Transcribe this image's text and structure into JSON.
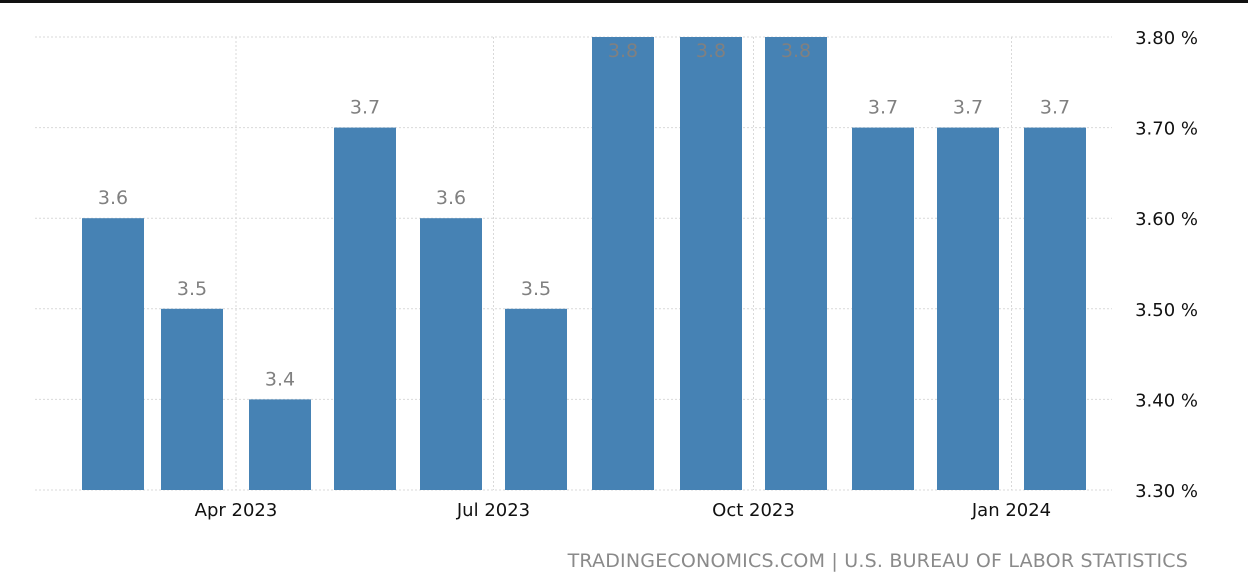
{
  "source": "TRADINGECONOMICS.COM | U.S. BUREAU OF LABOR STATISTICS",
  "colors": {
    "bar": "#4682b4",
    "label": "#808080",
    "axis_text": "#111111",
    "grid": "#d9d9d9",
    "source": "#8a8a8a"
  },
  "chart_data": {
    "type": "bar",
    "title": "",
    "xlabel": "",
    "ylabel": "",
    "ylim": [
      3.3,
      3.8
    ],
    "grid": true,
    "y_axis_side": "right",
    "y_ticks": [
      {
        "value": 3.3,
        "label": "3.30 %"
      },
      {
        "value": 3.4,
        "label": "3.40 %"
      },
      {
        "value": 3.5,
        "label": "3.50 %"
      },
      {
        "value": 3.6,
        "label": "3.60 %"
      },
      {
        "value": 3.7,
        "label": "3.70 %"
      },
      {
        "value": 3.8,
        "label": "3.80 %"
      }
    ],
    "x_ticks": [
      {
        "index": 2,
        "label": "Apr 2023"
      },
      {
        "index": 5,
        "label": "Jul 2023"
      },
      {
        "index": 8,
        "label": "Oct 2023"
      },
      {
        "index": 11,
        "label": "Jan 2024"
      }
    ],
    "values": [
      3.6,
      3.5,
      3.4,
      3.7,
      3.6,
      3.5,
      3.8,
      3.8,
      3.8,
      3.7,
      3.7,
      3.7
    ],
    "value_labels": [
      "3.6",
      "3.5",
      "3.4",
      "3.7",
      "3.6",
      "3.5",
      "3.8",
      "3.8",
      "3.8",
      "3.7",
      "3.7",
      "3.7"
    ]
  }
}
